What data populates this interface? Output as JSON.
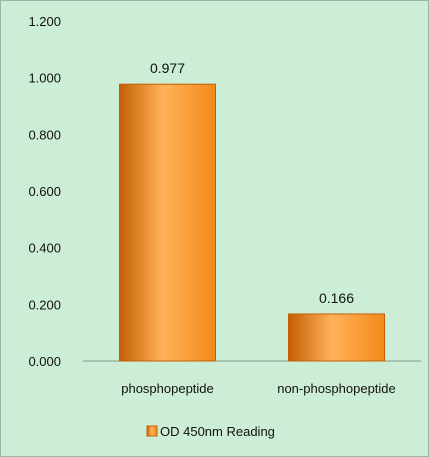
{
  "colors": {
    "background": "#cdeed6",
    "bar": "#f28a1a",
    "bar_dark": "#c45f05",
    "bar_light": "#ffb25a",
    "axis": "#7f9a8a"
  },
  "chart_data": {
    "type": "bar",
    "categories": [
      "phosphopeptide",
      "non-phosphopeptide"
    ],
    "series": [
      {
        "name": "OD 450nm Reading",
        "values": [
          0.977,
          0.166
        ]
      }
    ],
    "data_labels": [
      "0.977",
      "0.166"
    ],
    "y_ticks": [
      "0.000",
      "0.200",
      "0.400",
      "0.600",
      "0.800",
      "1.000",
      "1.200"
    ],
    "ylim": [
      0,
      1.2
    ],
    "grid": false,
    "legend_position": "bottom"
  }
}
